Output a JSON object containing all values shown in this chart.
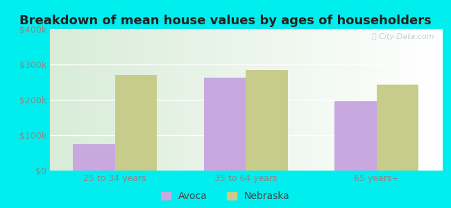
{
  "title": "Breakdown of mean house values by ages of householders",
  "categories": [
    "25 to 34 years",
    "35 to 64 years",
    "65 years+"
  ],
  "avoca_values": [
    75000,
    262000,
    197000
  ],
  "nebraska_values": [
    270000,
    285000,
    243000
  ],
  "avoca_color": "#c9a8e0",
  "nebraska_color": "#c8cc8a",
  "ylim": [
    0,
    400000
  ],
  "yticks": [
    0,
    100000,
    200000,
    300000,
    400000
  ],
  "ytick_labels": [
    "$0",
    "$100k",
    "$200k",
    "$300k",
    "$400k"
  ],
  "background_color": "#00eeee",
  "bar_width": 0.32,
  "legend_labels": [
    "Avoca",
    "Nebraska"
  ],
  "title_fontsize": 13,
  "tick_fontsize": 9,
  "legend_fontsize": 10,
  "watermark_text": "ⓘ City-Data.com",
  "title_color": "#222222",
  "tick_color": "#888888",
  "legend_text_color": "#444444"
}
